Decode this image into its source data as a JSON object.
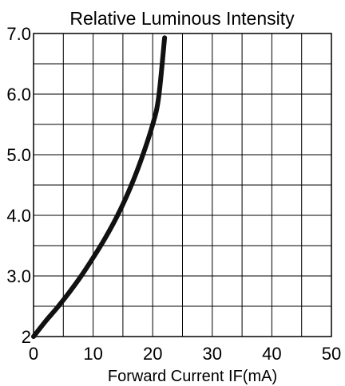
{
  "chart_data": {
    "type": "line",
    "title": "Relative Luminous Intensity",
    "xlabel": "Forward Current IF(mA)",
    "ylabel": "",
    "xlim": [
      0,
      50
    ],
    "ylim": [
      2.0,
      7.0
    ],
    "x_ticks": [
      {
        "value": 0,
        "label": "0"
      },
      {
        "value": 10,
        "label": "10"
      },
      {
        "value": 20,
        "label": "20"
      },
      {
        "value": 30,
        "label": "30"
      },
      {
        "value": 40,
        "label": "40"
      },
      {
        "value": 50,
        "label": "50"
      }
    ],
    "y_ticks": [
      {
        "value": 2.0,
        "label": "2"
      },
      {
        "value": 3.0,
        "label": "3.0"
      },
      {
        "value": 4.0,
        "label": "4.0"
      },
      {
        "value": 5.0,
        "label": "5.0"
      },
      {
        "value": 6.0,
        "label": "6.0"
      },
      {
        "value": 7.0,
        "label": "7.0"
      }
    ],
    "grid": true,
    "x_grid_step": 5,
    "y_grid_step": 0.5,
    "series": [
      {
        "x": [
          0,
          2,
          4,
          6,
          8,
          10,
          12,
          14,
          16,
          18,
          20,
          21,
          22
        ],
        "y": [
          2.0,
          2.25,
          2.48,
          2.73,
          3.0,
          3.3,
          3.62,
          3.98,
          4.4,
          4.9,
          5.5,
          5.95,
          6.93
        ],
        "color": "#111111"
      }
    ]
  }
}
